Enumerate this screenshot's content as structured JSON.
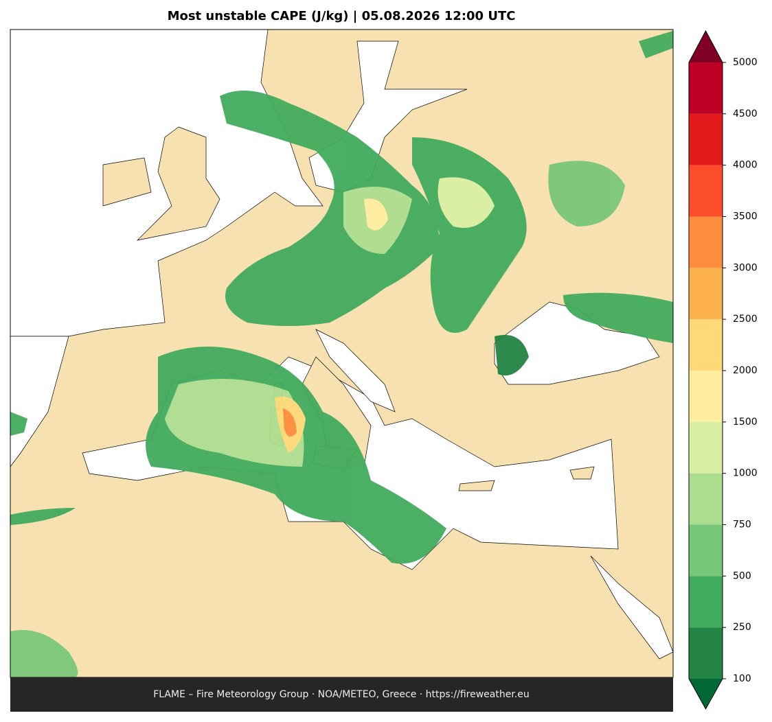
{
  "title": "Most unstable CAPE (J/kg)  |  05.08.2026 12:00 UTC",
  "footer": "FLAME – Fire Meteorology Group · NOA/METEO, Greece · https://fireweather.eu",
  "colorbar": {
    "levels": [
      100,
      250,
      500,
      750,
      1000,
      1500,
      2000,
      2500,
      3000,
      3500,
      4000,
      4500,
      5000
    ],
    "colors": [
      "#238443",
      "#41ab5d",
      "#78c679",
      "#addd8e",
      "#d9f0a3",
      "#ffeda0",
      "#fed976",
      "#feb24c",
      "#fd8d3c",
      "#fc4e2a",
      "#e31a1c",
      "#bd0026"
    ],
    "under_color": "#006837",
    "over_color": "#800026"
  }
}
